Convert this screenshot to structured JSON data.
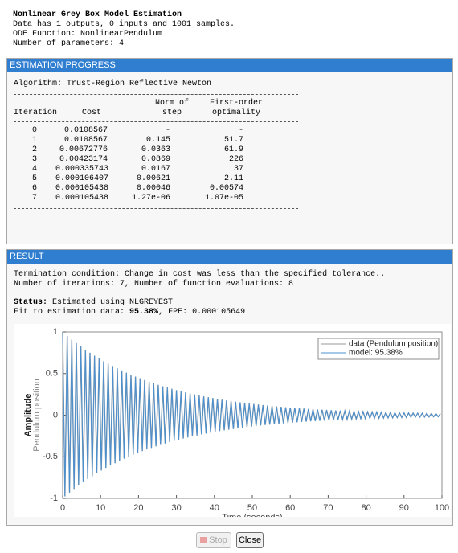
{
  "header": {
    "title": "Nonlinear Grey Box Model Estimation",
    "lines": [
      "Data has 1 outputs, 0 inputs and 1001 samples.",
      "ODE Function: NonlinearPendulum",
      "Number of parameters: 4"
    ]
  },
  "progress": {
    "title": "ESTIMATION PROGRESS",
    "algorithm": "Algorithm: Trust-Region Reflective Newton",
    "table": {
      "header": [
        [
          "",
          "",
          "Norm of",
          "First-order"
        ],
        [
          "Iteration",
          "Cost",
          "step",
          "optimality"
        ]
      ],
      "rows": [
        [
          "0",
          "0.0108567",
          "-",
          "-"
        ],
        [
          "1",
          "0.0108567",
          "0.145",
          "51.7"
        ],
        [
          "2",
          "0.00672776",
          "0.0363",
          "61.9"
        ],
        [
          "3",
          "0.00423174",
          "0.0869",
          "226"
        ],
        [
          "4",
          "0.000335743",
          "0.0167",
          "37"
        ],
        [
          "5",
          "0.000106407",
          "0.00621",
          "2.11"
        ],
        [
          "6",
          "0.000105438",
          "0.00046",
          "0.00574"
        ],
        [
          "7",
          "0.000105438",
          "1.27e-06",
          "1.07e-05"
        ]
      ]
    }
  },
  "result": {
    "title": "RESULT",
    "termination": "Termination condition: Change in cost was less than the specified tolerance..",
    "iterations": "Number of iterations: 7, Number of function evaluations: 8",
    "status_label": "Status:",
    "status": "Estimated using NLGREYEST",
    "fit_label": "Fit to estimation data:",
    "fit": "95.38%",
    "fpe": ", FPE: 0.000105649"
  },
  "buttons": {
    "stop": "Stop",
    "close": "Close"
  },
  "chart_data": {
    "type": "line",
    "xlabel": "Time (seconds)",
    "ylabel_lines": [
      "Amplitude",
      "Pendulum position"
    ],
    "xlim": [
      0,
      100
    ],
    "ylim": [
      -1,
      1
    ],
    "xticks": [
      0,
      10,
      20,
      30,
      40,
      50,
      60,
      70,
      80,
      90,
      100
    ],
    "yticks": [
      -1,
      -0.5,
      0,
      0.5,
      1
    ],
    "legend": "upper right",
    "x": [
      0,
      0.6,
      1.2,
      1.8,
      2.4,
      3,
      3.6,
      4.2,
      4.8,
      5.4,
      6,
      6.6,
      7.2,
      7.8,
      8.4,
      9,
      9.6,
      10.2,
      10.8,
      11.4,
      12,
      12.6,
      13.2,
      13.8,
      14.4,
      15,
      15.6,
      16.2,
      16.8,
      17.4,
      18,
      18.6,
      19.2,
      19.8,
      20.4,
      21,
      21.6,
      22.2,
      22.8,
      23.4,
      24,
      24.6,
      25.2,
      25.8,
      26.4,
      27,
      27.6,
      28.2,
      28.8,
      29.4,
      30,
      30.6,
      31.2,
      31.8,
      32.4,
      33,
      33.6,
      34.2,
      34.8,
      35.4,
      36,
      36.6,
      37.2,
      37.8,
      38.4,
      39,
      39.6,
      40.2,
      40.8,
      41.4,
      42,
      42.6,
      43.2,
      43.8,
      44.4,
      45,
      45.6,
      46.2,
      46.8,
      47.4,
      48,
      48.6,
      49.2,
      49.8,
      50.4,
      51,
      51.6,
      52.2,
      52.8,
      53.4,
      54,
      54.6,
      55.2,
      55.8,
      56.4,
      57,
      57.6,
      58.2,
      58.8,
      59.4,
      60,
      60.6,
      61.2,
      61.8,
      62.4,
      63,
      63.6,
      64.2,
      64.8,
      65.4,
      66,
      66.6,
      67.2,
      67.8,
      68.4,
      69,
      69.6,
      70.2,
      70.8,
      71.4,
      72,
      72.6,
      73.2,
      73.8,
      74.4,
      75,
      75.6,
      76.2,
      76.8,
      77.4,
      78,
      78.6,
      79.2,
      79.8,
      80.4,
      81,
      81.6,
      82.2,
      82.8,
      83.4,
      84,
      84.6,
      85.2,
      85.8,
      86.4,
      87,
      87.6,
      88.2,
      88.8,
      89.4,
      90,
      90.6,
      91.2,
      91.8,
      92.4,
      93,
      93.6,
      94.2,
      94.8,
      95.4,
      96,
      96.6,
      97.2,
      97.8,
      98.4,
      99,
      99.6
    ],
    "series": [
      {
        "name": "data (Pendulum position)",
        "color": "#9a9a9a",
        "values": [
          1,
          -0.976,
          0.953,
          -0.931,
          0.908,
          -0.887,
          0.866,
          -0.845,
          0.825,
          -0.806,
          0.787,
          -0.768,
          0.75,
          -0.733,
          0.715,
          -0.698,
          0.682,
          -0.665,
          0.649,
          -0.634,
          0.619,
          -0.604,
          0.59,
          -0.577,
          0.563,
          -0.549,
          0.537,
          -0.523,
          0.511,
          -0.499,
          0.487,
          -0.476,
          0.464,
          -0.454,
          0.443,
          -0.432,
          0.422,
          -0.412,
          0.402,
          -0.393,
          0.383,
          -0.374,
          0.365,
          -0.357,
          0.348,
          -0.34,
          0.332,
          -0.324,
          0.317,
          -0.309,
          0.301,
          -0.294,
          0.287,
          -0.281,
          0.274,
          -0.268,
          0.261,
          -0.255,
          0.249,
          -0.243,
          0.237,
          -0.232,
          0.226,
          -0.221,
          0.216,
          -0.211,
          0.206,
          -0.201,
          0.196,
          -0.191,
          0.186,
          -0.182,
          0.178,
          -0.174,
          0.17,
          -0.166,
          0.162,
          -0.158,
          0.154,
          -0.15,
          0.147,
          -0.143,
          0.14,
          -0.137,
          0.134,
          -0.13,
          0.127,
          -0.124,
          0.121,
          -0.118,
          0.115,
          -0.113,
          0.11,
          -0.108,
          0.105,
          -0.103,
          0.1,
          -0.098,
          0.095,
          -0.093,
          0.091,
          -0.089,
          0.087,
          -0.085,
          0.083,
          -0.081,
          0.079,
          -0.077,
          0.075,
          -0.073,
          0.071,
          -0.07,
          0.068,
          -0.067,
          0.065,
          -0.064,
          0.062,
          -0.061,
          0.059,
          -0.058,
          0.056,
          -0.055,
          0.054,
          -0.052,
          0.051,
          -0.05,
          0.049,
          -0.048,
          0.047,
          -0.046,
          0.044,
          -0.043,
          0.042,
          -0.041,
          0.04,
          -0.039,
          0.038,
          -0.037,
          0.037,
          -0.036,
          0.035,
          -0.034,
          0.033,
          -0.032,
          0.032,
          -0.031,
          0.03,
          -0.029,
          0.029,
          -0.028,
          0.027,
          -0.027,
          0.026,
          -0.025,
          0.025,
          -0.024,
          0.024,
          -0.023,
          0.023,
          -0.022,
          0.022,
          -0.021,
          0.02,
          -0.02,
          0.019,
          -0.019,
          0.018
        ]
      },
      {
        "name": "model: 95.38%",
        "color": "#4a90d0",
        "values": [
          1,
          -0.976,
          0.953,
          -0.931,
          0.908,
          -0.887,
          0.866,
          -0.845,
          0.825,
          -0.806,
          0.787,
          -0.768,
          0.75,
          -0.733,
          0.715,
          -0.698,
          0.682,
          -0.665,
          0.649,
          -0.634,
          0.619,
          -0.604,
          0.59,
          -0.577,
          0.563,
          -0.549,
          0.537,
          -0.523,
          0.511,
          -0.499,
          0.487,
          -0.476,
          0.464,
          -0.454,
          0.443,
          -0.432,
          0.422,
          -0.412,
          0.402,
          -0.393,
          0.383,
          -0.374,
          0.365,
          -0.357,
          0.348,
          -0.34,
          0.332,
          -0.324,
          0.317,
          -0.309,
          0.301,
          -0.294,
          0.287,
          -0.281,
          0.274,
          -0.268,
          0.261,
          -0.255,
          0.249,
          -0.243,
          0.237,
          -0.232,
          0.226,
          -0.221,
          0.216,
          -0.211,
          0.206,
          -0.201,
          0.196,
          -0.191,
          0.186,
          -0.182,
          0.178,
          -0.174,
          0.17,
          -0.166,
          0.162,
          -0.158,
          0.154,
          -0.15,
          0.147,
          -0.143,
          0.14,
          -0.137,
          0.134,
          -0.13,
          0.127,
          -0.124,
          0.121,
          -0.118,
          0.115,
          -0.113,
          0.11,
          -0.108,
          0.105,
          -0.103,
          0.1,
          -0.098,
          0.095,
          -0.093,
          0.091,
          -0.089,
          0.087,
          -0.085,
          0.083,
          -0.081,
          0.079,
          -0.077,
          0.075,
          -0.073,
          0.071,
          -0.07,
          0.068,
          -0.067,
          0.065,
          -0.064,
          0.062,
          -0.061,
          0.059,
          -0.058,
          0.056,
          -0.055,
          0.054,
          -0.052,
          0.051,
          -0.05,
          0.049,
          -0.048,
          0.047,
          -0.046,
          0.044,
          -0.043,
          0.042,
          -0.041,
          0.04,
          -0.039,
          0.038,
          -0.037,
          0.037,
          -0.036,
          0.035,
          -0.034,
          0.033,
          -0.032,
          0.032,
          -0.031,
          0.03,
          -0.029,
          0.029,
          -0.028,
          0.027,
          -0.027,
          0.026,
          -0.025,
          0.025,
          -0.024,
          0.024,
          -0.023,
          0.023,
          -0.022,
          0.022,
          -0.021,
          0.02,
          -0.02,
          0.019,
          -0.019,
          0.018
        ]
      }
    ]
  }
}
